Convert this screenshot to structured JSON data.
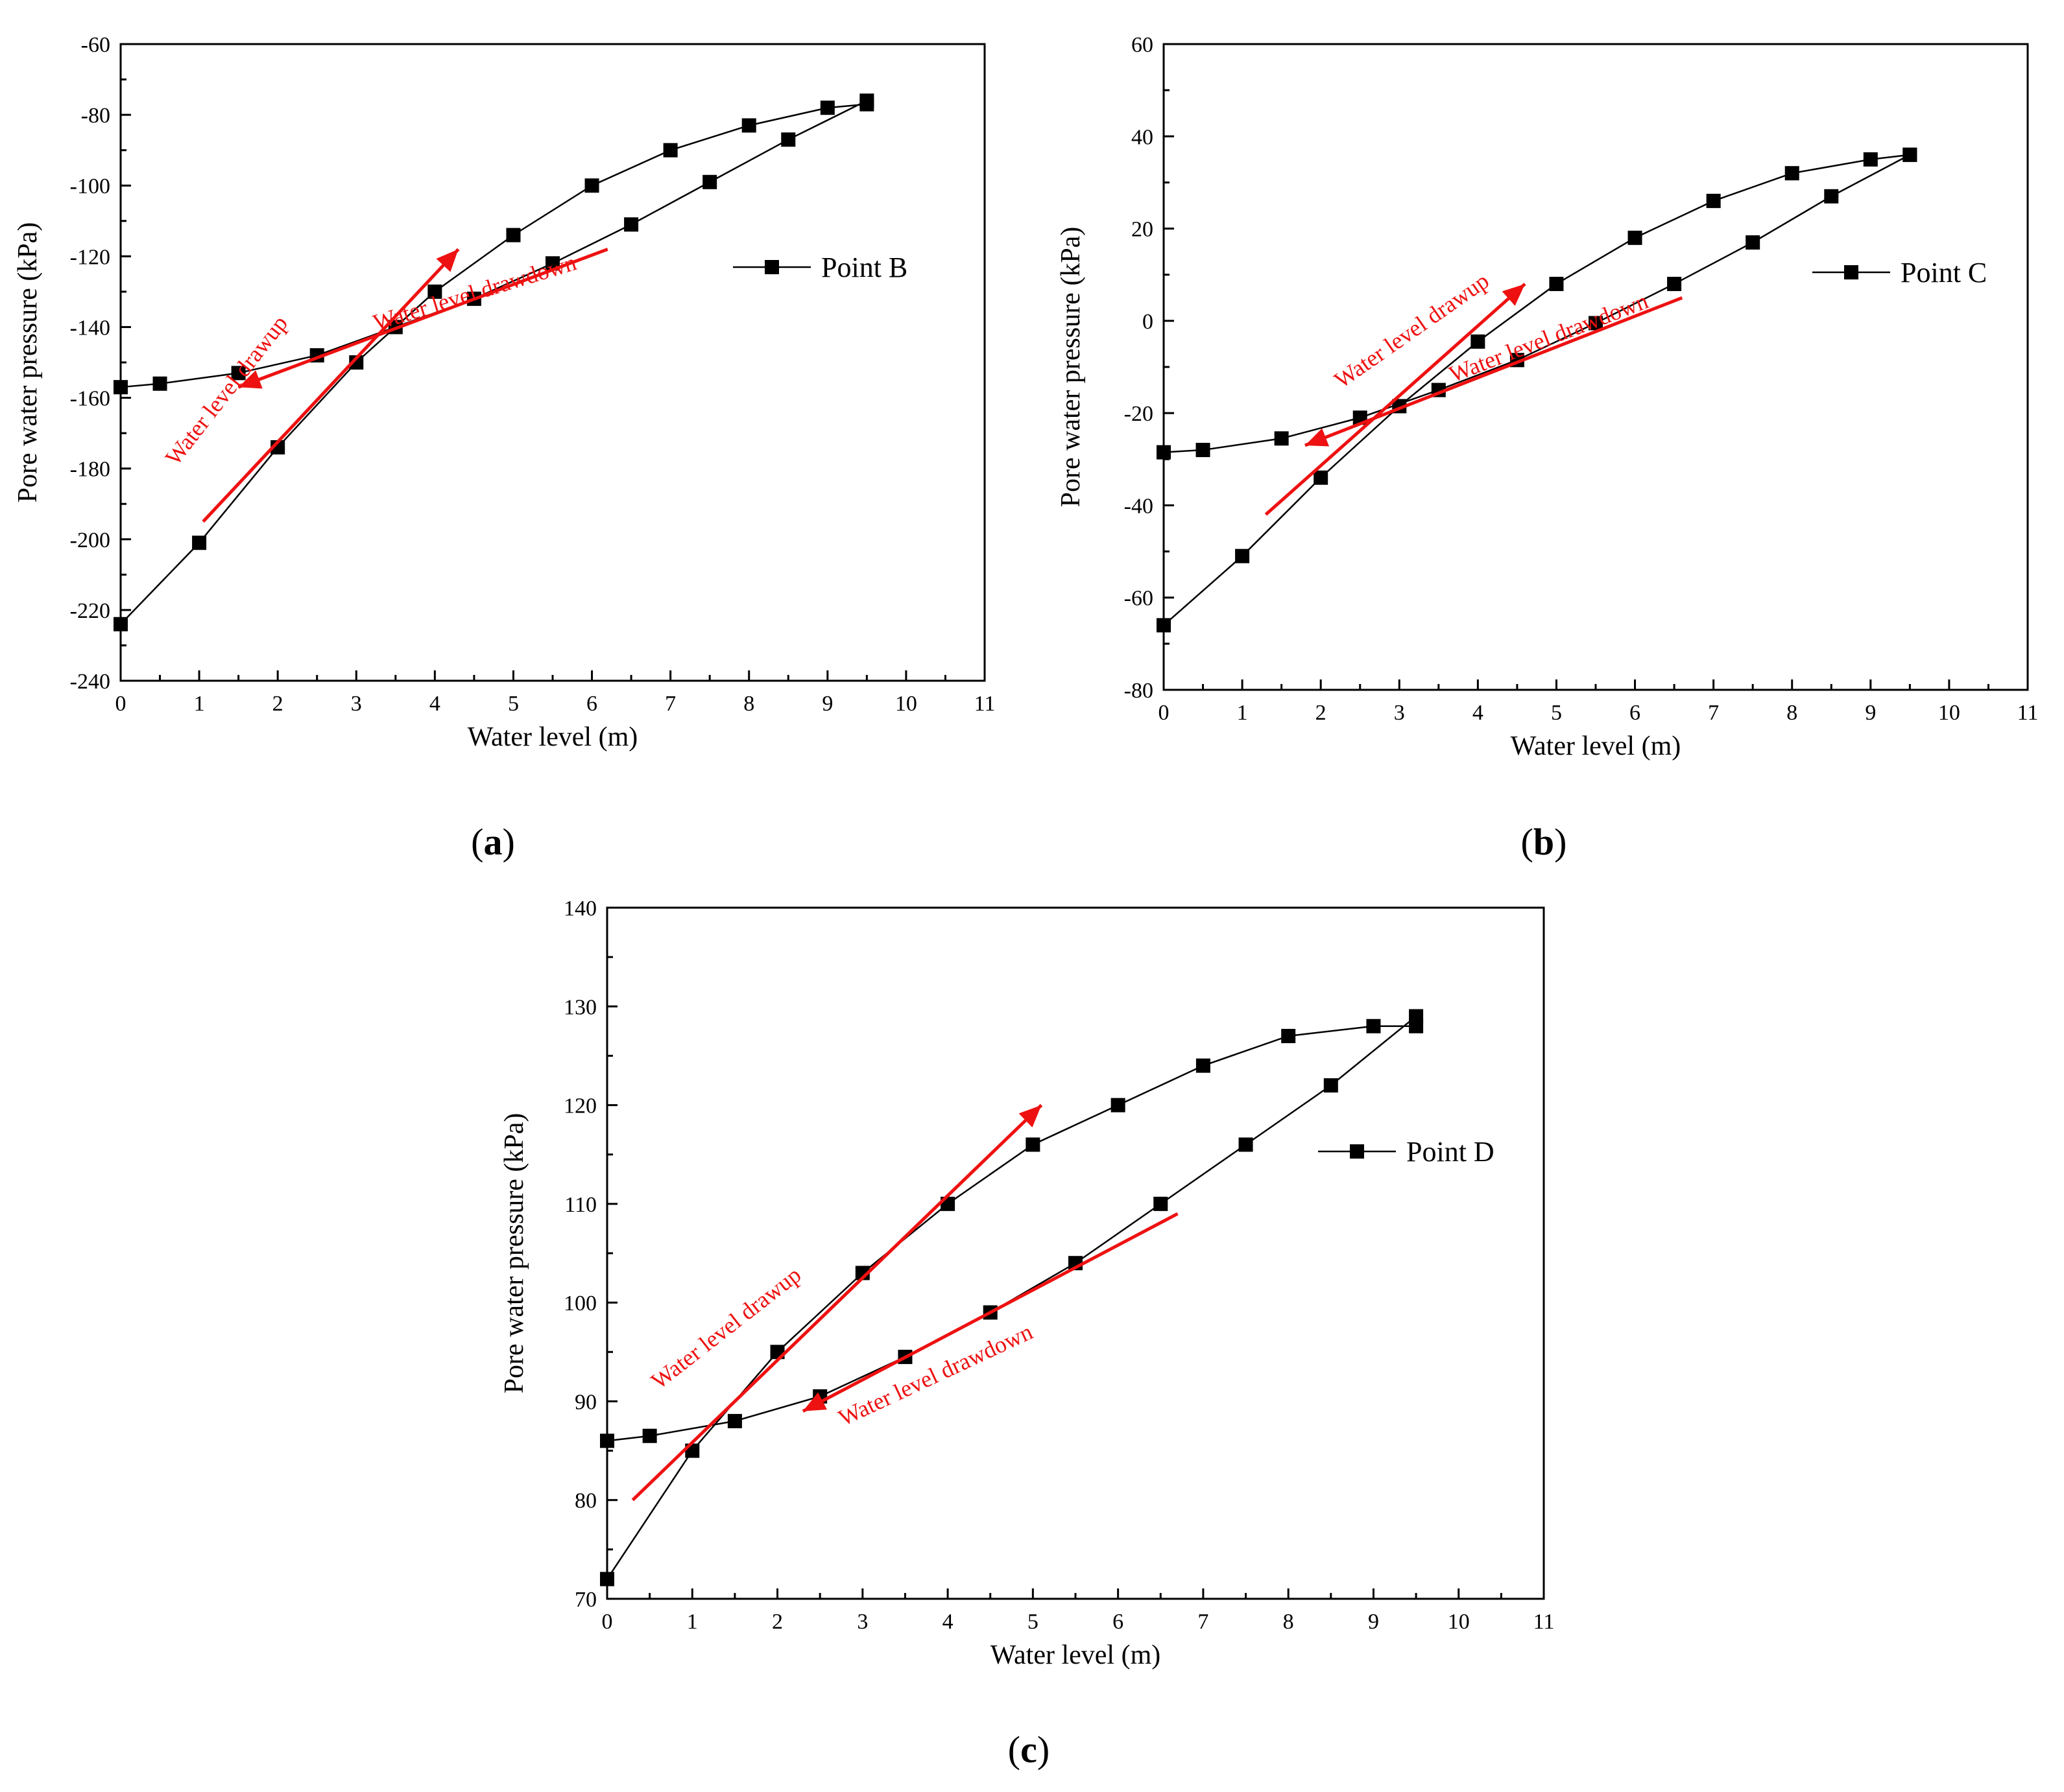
{
  "chart_data": [
    {
      "type": "line",
      "panel_label": "a",
      "xlabel": "Water level (m)",
      "ylabel": "Pore water pressure (kPa)",
      "xlim": [
        0,
        11
      ],
      "ylim": [
        -240,
        -60
      ],
      "xticks": [
        0,
        1,
        2,
        3,
        4,
        5,
        6,
        7,
        8,
        9,
        10,
        11
      ],
      "yticks": [
        -240,
        -220,
        -200,
        -180,
        -160,
        -140,
        -120,
        -100,
        -80,
        -60
      ],
      "legend_position": "right-middle",
      "series": [
        {
          "name": "Point B",
          "x": [
            0,
            1,
            2,
            3,
            4,
            5,
            6,
            7,
            8,
            9,
            9.5,
            9.5,
            8.5,
            7.5,
            6.5,
            5.5,
            4.5,
            3.5,
            2.5,
            1.5,
            0.5,
            0
          ],
          "values": [
            -224,
            -201,
            -174,
            -150,
            -130,
            -114,
            -100,
            -90,
            -83,
            -78,
            -77,
            -76,
            -87,
            -99,
            -111,
            -122,
            -132,
            -140,
            -148,
            -153,
            -156,
            -157
          ]
        }
      ],
      "annotations": [
        {
          "text": "Water level drawup",
          "from": [
            1.05,
            -195
          ],
          "to": [
            4.3,
            -118
          ],
          "arrow": "end"
        },
        {
          "text": "Water level drawdown",
          "from": [
            6.2,
            -118
          ],
          "to": [
            1.5,
            -157
          ],
          "arrow": "end"
        }
      ]
    },
    {
      "type": "line",
      "panel_label": "b",
      "xlabel": "Water level (m)",
      "ylabel": "Pore water pressure (kPa)",
      "xlim": [
        0,
        11
      ],
      "ylim": [
        -80,
        60
      ],
      "xticks": [
        0,
        1,
        2,
        3,
        4,
        5,
        6,
        7,
        8,
        9,
        10,
        11
      ],
      "yticks": [
        -80,
        -60,
        -40,
        -20,
        0,
        20,
        40,
        60
      ],
      "legend_position": "right-middle",
      "series": [
        {
          "name": "Point C",
          "x": [
            0,
            1,
            2,
            3,
            4,
            5,
            6,
            7,
            8,
            9,
            9.5,
            9.5,
            8.5,
            7.5,
            6.5,
            5.5,
            4.5,
            3.5,
            2.5,
            1.5,
            0.5,
            0
          ],
          "values": [
            -66,
            -51,
            -34,
            -18.5,
            -4.5,
            8,
            18,
            26,
            32,
            35,
            36,
            36,
            27,
            17,
            8,
            -0.5,
            -8.5,
            -15,
            -21,
            -25.5,
            -28,
            -28.5
          ]
        }
      ],
      "annotations": [
        {
          "text": "Water level drawup",
          "from": [
            1.3,
            -42
          ],
          "to": [
            4.6,
            8
          ],
          "arrow": "end"
        },
        {
          "text": "Water level drawdown",
          "from": [
            6.6,
            5
          ],
          "to": [
            1.8,
            -27
          ],
          "arrow": "end"
        }
      ]
    },
    {
      "type": "line",
      "panel_label": "c",
      "xlabel": "Water level (m)",
      "ylabel": "Pore water pressure (kPa)",
      "xlim": [
        0,
        11
      ],
      "ylim": [
        70,
        140
      ],
      "xticks": [
        0,
        1,
        2,
        3,
        4,
        5,
        6,
        7,
        8,
        9,
        10,
        11
      ],
      "yticks": [
        70,
        80,
        90,
        100,
        110,
        120,
        130,
        140
      ],
      "legend_position": "right-middle",
      "series": [
        {
          "name": "Point D",
          "x": [
            0,
            1,
            2,
            3,
            4,
            5,
            6,
            7,
            8,
            9,
            9.5,
            9.5,
            8.5,
            7.5,
            6.5,
            5.5,
            4.5,
            3.5,
            2.5,
            1.5,
            0.5,
            0
          ],
          "values": [
            72,
            85,
            95,
            103,
            110,
            116,
            120,
            124,
            127,
            128,
            128,
            129,
            122,
            116,
            110,
            104,
            99,
            94.5,
            90.5,
            88,
            86.5,
            86
          ]
        }
      ],
      "annotations": [
        {
          "text": "Water level drawup",
          "from": [
            0.3,
            80
          ],
          "to": [
            5.1,
            120
          ],
          "arrow": "end"
        },
        {
          "text": "Water level drawdown",
          "from": [
            6.7,
            109
          ],
          "to": [
            2.3,
            89
          ],
          "arrow": "end"
        }
      ]
    }
  ]
}
